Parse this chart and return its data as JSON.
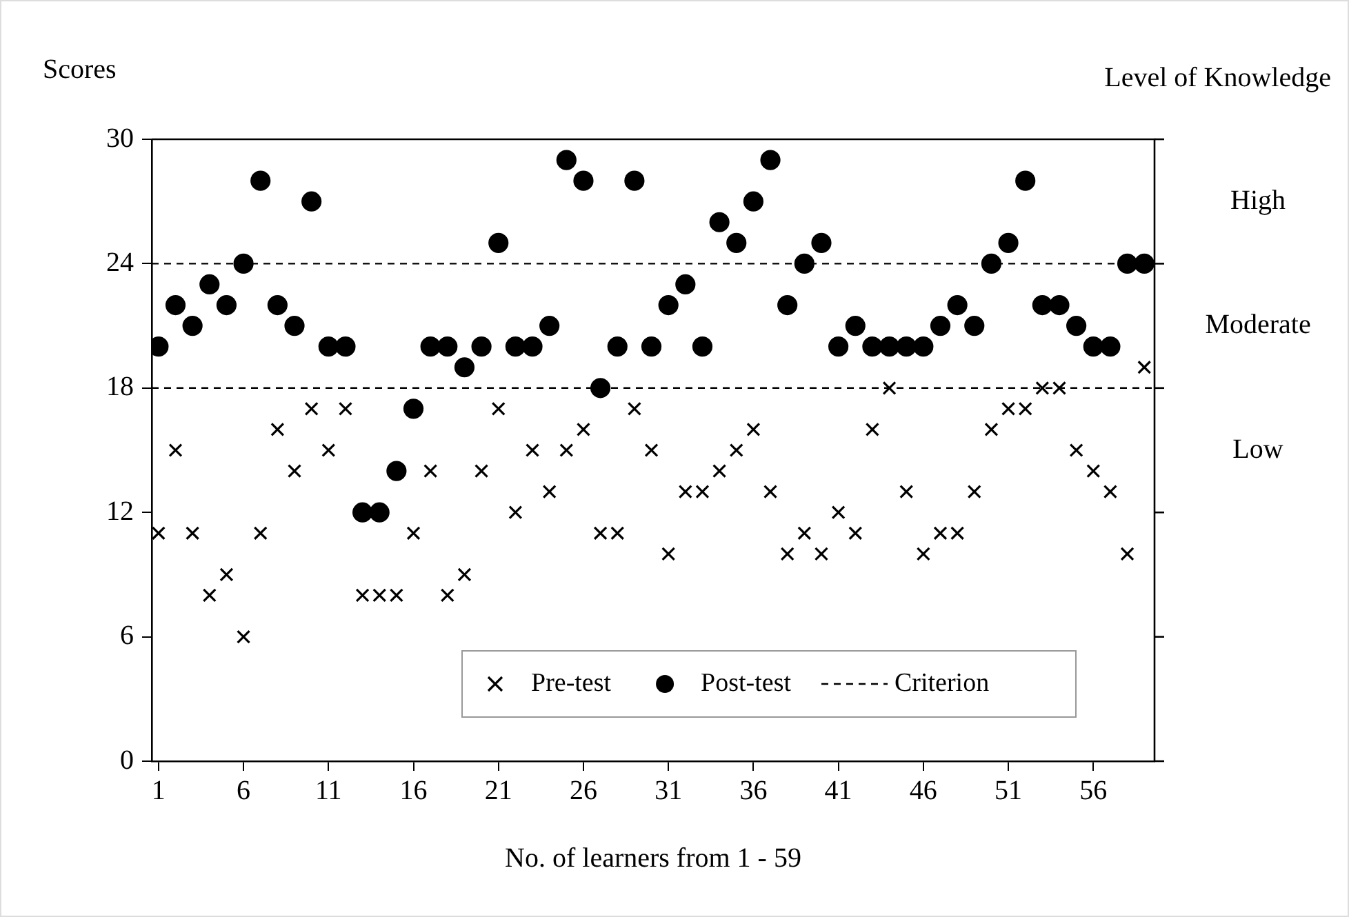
{
  "chart_data": {
    "type": "scatter",
    "ylabel": "Scores",
    "xlabel": "No. of learners from 1 - 59",
    "x": [
      1,
      2,
      3,
      4,
      5,
      6,
      7,
      8,
      9,
      10,
      11,
      12,
      13,
      14,
      15,
      16,
      17,
      18,
      19,
      20,
      21,
      22,
      23,
      24,
      25,
      26,
      27,
      28,
      29,
      30,
      31,
      32,
      33,
      34,
      35,
      36,
      37,
      38,
      39,
      40,
      41,
      42,
      43,
      44,
      45,
      46,
      47,
      48,
      49,
      50,
      51,
      52,
      53,
      54,
      55,
      56,
      57,
      58,
      59
    ],
    "series": [
      {
        "name": "Pre-test",
        "color": "#000000",
        "marker": "cross",
        "values": [
          11,
          15,
          11,
          8,
          9,
          6,
          11,
          16,
          14,
          17,
          15,
          17,
          8,
          8,
          8,
          11,
          14,
          8,
          9,
          14,
          17,
          12,
          15,
          13,
          15,
          16,
          11,
          11,
          17,
          15,
          10,
          13,
          13,
          14,
          15,
          16,
          13,
          10,
          11,
          10,
          12,
          11,
          16,
          18,
          13,
          10,
          11,
          11,
          13,
          16,
          17,
          17,
          18,
          18,
          15,
          14,
          13,
          10,
          19
        ]
      },
      {
        "name": "Post-test",
        "color": "#000000",
        "marker": "circle",
        "values": [
          20,
          22,
          21,
          23,
          22,
          24,
          28,
          22,
          21,
          27,
          20,
          20,
          12,
          12,
          14,
          17,
          20,
          20,
          19,
          20,
          25,
          20,
          20,
          21,
          29,
          28,
          18,
          20,
          28,
          20,
          22,
          23,
          20,
          26,
          25,
          27,
          29,
          22,
          24,
          25,
          20,
          21,
          20,
          20,
          20,
          20,
          21,
          22,
          21,
          24,
          25,
          28,
          22,
          22,
          21,
          20,
          20,
          24,
          24
        ]
      }
    ],
    "ref_lines": [
      {
        "axis": "y",
        "value": 24,
        "label": "Criterion",
        "line_style": "dashed",
        "color": "#000000"
      },
      {
        "axis": "y",
        "value": 18,
        "line_style": "dashed",
        "color": "#000000"
      }
    ],
    "annotations": [
      "Level of Knowledge",
      "High",
      "Moderate",
      "Low"
    ],
    "xlim": [
      0.6,
      59.6
    ],
    "xticks": [
      1,
      6,
      11,
      16,
      21,
      26,
      31,
      36,
      41,
      46,
      51,
      56
    ],
    "ylim": [
      0,
      30
    ],
    "yticks": [
      0,
      6,
      12,
      18,
      24,
      30
    ],
    "grid": false,
    "legend": "bottom"
  }
}
